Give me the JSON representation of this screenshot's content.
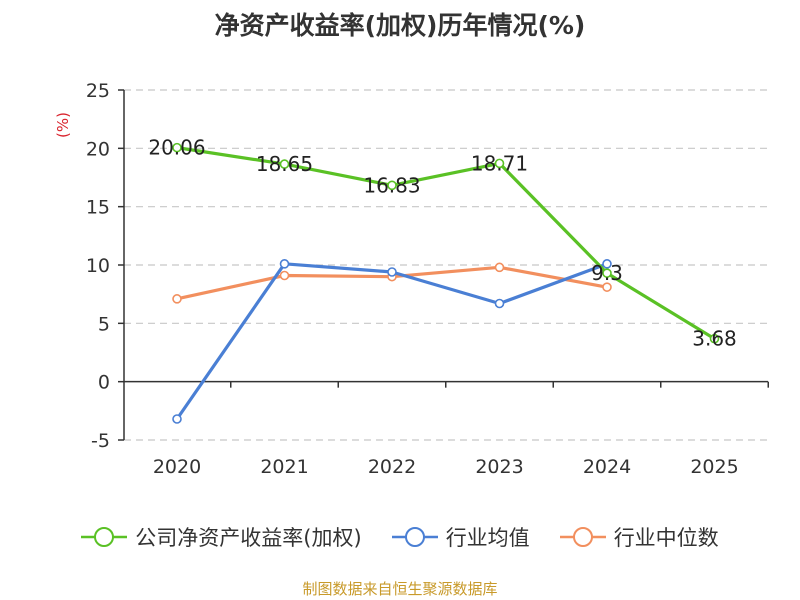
{
  "title": "净资产收益率(加权)历年情况(%)",
  "source": "制图数据来自恒生聚源数据库",
  "chart_data": {
    "type": "line",
    "title": "净资产收益率(加权)历年情况(%)",
    "ylabel": "(%)",
    "xlabel": "",
    "categories": [
      "2020",
      "2021",
      "2022",
      "2023",
      "2024",
      "2025"
    ],
    "ylim": [
      -5,
      25
    ],
    "yticks": [
      -5,
      0,
      5,
      10,
      15,
      20,
      25
    ],
    "grid": true,
    "legend_position": "bottom",
    "series": [
      {
        "name": "公司净资产收益率(加权)",
        "color": "#5ac125",
        "values": [
          20.06,
          18.65,
          16.83,
          18.71,
          9.3,
          3.68
        ],
        "labels": [
          "20.06",
          "18.65",
          "16.83",
          "18.71",
          "9.3",
          "3.68"
        ]
      },
      {
        "name": "行业均值",
        "color": "#4a7fd4",
        "values": [
          -3.2,
          10.1,
          9.4,
          6.7,
          10.1,
          null
        ]
      },
      {
        "name": "行业中位数",
        "color": "#f28f5e",
        "values": [
          7.1,
          9.1,
          9.0,
          9.8,
          8.1,
          null
        ]
      }
    ]
  }
}
